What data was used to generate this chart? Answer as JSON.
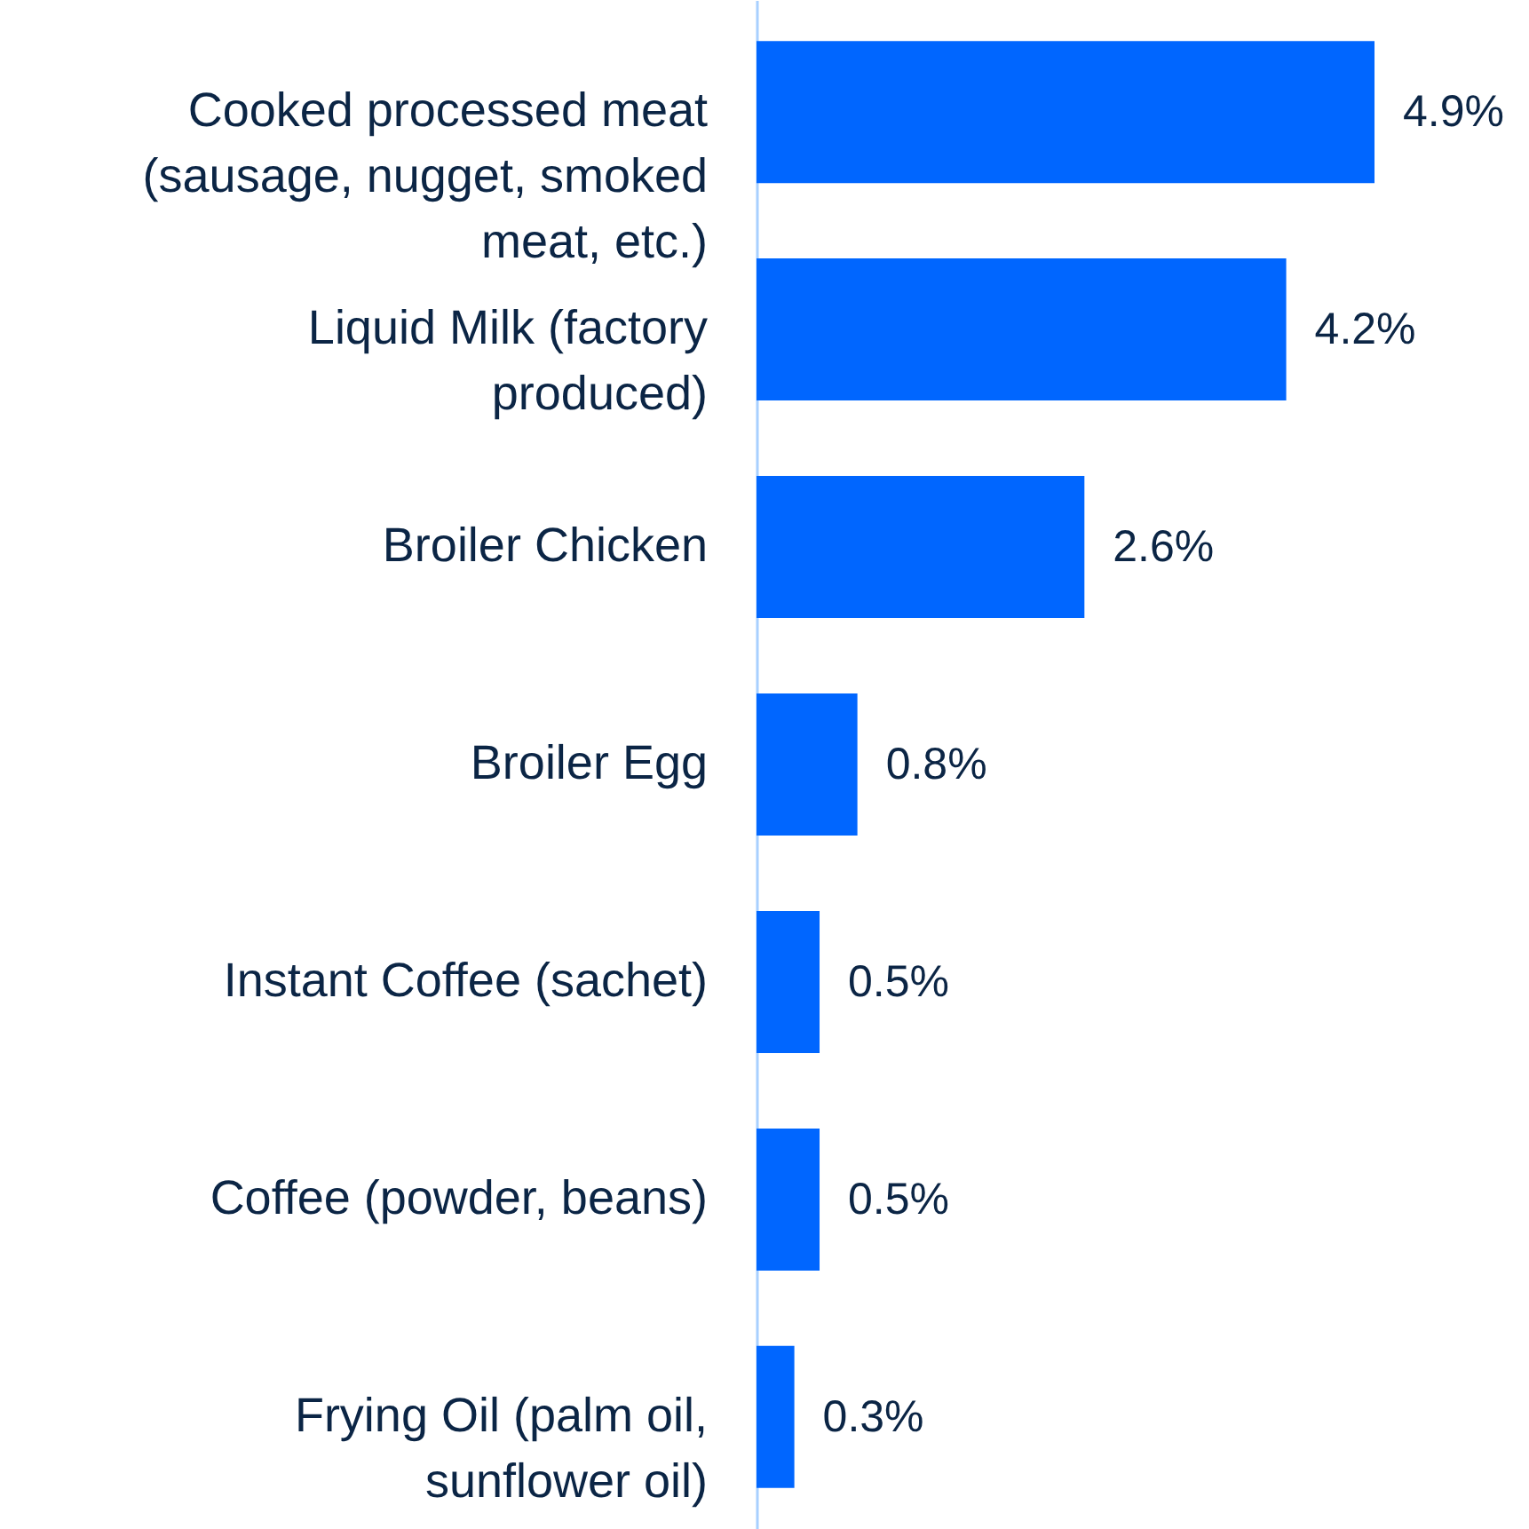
{
  "chart_data": {
    "type": "bar",
    "orientation": "horizontal",
    "categories": [
      "Cooked processed meat (sausage, nugget, smoked meat, etc.)",
      "Liquid Milk (factory produced)",
      "Broiler Chicken",
      "Broiler Egg",
      "Instant Coffee (sachet)",
      "Coffee (powder, beans)",
      "Frying Oil (palm oil, sunflower oil)"
    ],
    "values": [
      4.9,
      4.2,
      2.6,
      0.8,
      0.5,
      0.5,
      0.3
    ],
    "value_labels": [
      "4.9%",
      "4.2%",
      "2.6%",
      "0.8%",
      "0.5%",
      "0.5%",
      "0.3%"
    ],
    "color": "#0066ff",
    "grid": false,
    "tick_labels": "y"
  }
}
